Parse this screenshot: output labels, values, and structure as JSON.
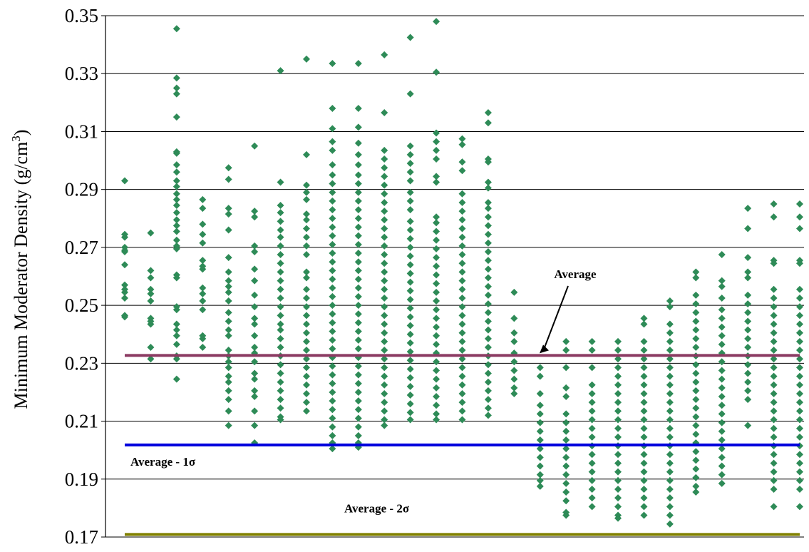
{
  "chart_data": {
    "type": "scatter",
    "ylabel": "Minimum Moderator Density (g/cm",
    "ylabel_sup": "3",
    "ylabel_close": ")",
    "xlabel": "",
    "ylim": [
      0.17,
      0.35
    ],
    "yticks": [
      "0.17",
      "0.19",
      "0.21",
      "0.23",
      "0.25",
      "0.27",
      "0.29",
      "0.31",
      "0.33",
      "0.35"
    ],
    "grid": true,
    "marker_color": "#2e8b57",
    "reference_lines": [
      {
        "label": "Average",
        "value": 0.2327,
        "color": "#8b3a62",
        "label_position": "above-center-with-arrow"
      },
      {
        "label": "Average - 1σ",
        "value": 0.2018,
        "color": "#0000dd",
        "label_position": "below-left"
      },
      {
        "label": "Average - 2σ",
        "value": 0.1709,
        "color": "#808000",
        "label_position": "above-left"
      }
    ],
    "series": [
      {
        "x": 1,
        "y": [
          0.293,
          0.2745,
          0.2735,
          0.27,
          0.269,
          0.2685,
          0.264,
          0.257,
          0.2555,
          0.2545,
          0.2525,
          0.2465,
          0.246
        ]
      },
      {
        "x": 2,
        "y": [
          0.275,
          0.262,
          0.2595,
          0.2555,
          0.254,
          0.2515,
          0.2455,
          0.2445,
          0.2435,
          0.2355,
          0.2315
        ]
      },
      {
        "x": 3,
        "y": [
          0.3455,
          0.3285,
          0.325,
          0.323,
          0.315,
          0.303,
          0.3025,
          0.2985,
          0.296,
          0.293,
          0.291,
          0.2885,
          0.2865,
          0.2845,
          0.282,
          0.2795,
          0.2775,
          0.2755,
          0.2725,
          0.2705,
          0.2695,
          0.2605,
          0.2595,
          0.2495,
          0.2485,
          0.2435,
          0.2415,
          0.2395,
          0.2365,
          0.2325,
          0.2315,
          0.2245
        ]
      },
      {
        "x": 4,
        "y": [
          0.2865,
          0.2835,
          0.278,
          0.2745,
          0.2715,
          0.2655,
          0.2635,
          0.2625,
          0.256,
          0.254,
          0.2515,
          0.2485,
          0.2395,
          0.2385,
          0.2355
        ]
      },
      {
        "x": 5,
        "y": [
          0.2975,
          0.2935,
          0.2835,
          0.2815,
          0.276,
          0.2665,
          0.2615,
          0.2585,
          0.2565,
          0.2545,
          0.2515,
          0.2475,
          0.2445,
          0.2415,
          0.2395,
          0.2345,
          0.2325,
          0.2305,
          0.2285,
          0.2255,
          0.2235,
          0.2205,
          0.2175,
          0.2135,
          0.2085
        ]
      },
      {
        "x": 6,
        "y": [
          0.305,
          0.2825,
          0.2805,
          0.2705,
          0.2685,
          0.2625,
          0.2585,
          0.2535,
          0.2495,
          0.2455,
          0.2435,
          0.2395,
          0.2355,
          0.2335,
          0.2305,
          0.2265,
          0.2245,
          0.2205,
          0.2185,
          0.2135,
          0.2085,
          0.2025
        ]
      },
      {
        "x": 7,
        "y": [
          0.331,
          0.2925,
          0.2845,
          0.282,
          0.279,
          0.276,
          0.2735,
          0.2705,
          0.2675,
          0.2645,
          0.2615,
          0.2585,
          0.2555,
          0.2525,
          0.2495,
          0.2465,
          0.2435,
          0.2415,
          0.2385,
          0.2355,
          0.2325,
          0.2295,
          0.2265,
          0.2235,
          0.2205,
          0.2175,
          0.2145,
          0.2115,
          0.2105
        ]
      },
      {
        "x": 8,
        "y": [
          0.335,
          0.302,
          0.2915,
          0.289,
          0.2865,
          0.2815,
          0.2795,
          0.2765,
          0.2735,
          0.2705,
          0.2675,
          0.2615,
          0.2595,
          0.2555,
          0.2525,
          0.2495,
          0.2465,
          0.2435,
          0.2405,
          0.2375,
          0.2345,
          0.2315,
          0.2285,
          0.2255,
          0.2225,
          0.2195,
          0.2165,
          0.2135
        ]
      },
      {
        "x": 9,
        "y": [
          0.3335,
          0.318,
          0.311,
          0.3065,
          0.3035,
          0.2985,
          0.295,
          0.292,
          0.289,
          0.286,
          0.283,
          0.28,
          0.277,
          0.274,
          0.271,
          0.268,
          0.265,
          0.262,
          0.259,
          0.256,
          0.253,
          0.25,
          0.247,
          0.244,
          0.241,
          0.238,
          0.235,
          0.232,
          0.229,
          0.226,
          0.223,
          0.22,
          0.217,
          0.214,
          0.211,
          0.208,
          0.205,
          0.2025,
          0.2005
        ]
      },
      {
        "x": 10,
        "y": [
          0.3335,
          0.318,
          0.3115,
          0.306,
          0.302,
          0.2985,
          0.295,
          0.292,
          0.289,
          0.286,
          0.283,
          0.28,
          0.277,
          0.274,
          0.271,
          0.268,
          0.265,
          0.262,
          0.259,
          0.256,
          0.253,
          0.25,
          0.247,
          0.244,
          0.241,
          0.238,
          0.235,
          0.232,
          0.229,
          0.226,
          0.223,
          0.22,
          0.217,
          0.214,
          0.211,
          0.208,
          0.205,
          0.2025,
          0.201
        ]
      },
      {
        "x": 11,
        "y": [
          0.3365,
          0.3165,
          0.3035,
          0.3005,
          0.2975,
          0.2945,
          0.2915,
          0.2885,
          0.2855,
          0.2825,
          0.2795,
          0.2765,
          0.2735,
          0.2705,
          0.2675,
          0.2645,
          0.2615,
          0.2585,
          0.2555,
          0.2525,
          0.2495,
          0.2465,
          0.2435,
          0.2405,
          0.2375,
          0.2345,
          0.2315,
          0.2285,
          0.2255,
          0.2225,
          0.2195,
          0.2165,
          0.2135,
          0.2105,
          0.2085
        ]
      },
      {
        "x": 12,
        "y": [
          0.3425,
          0.323,
          0.305,
          0.302,
          0.299,
          0.296,
          0.293,
          0.289,
          0.286,
          0.283,
          0.279,
          0.276,
          0.273,
          0.27,
          0.267,
          0.264,
          0.261,
          0.258,
          0.255,
          0.252,
          0.249,
          0.246,
          0.243,
          0.24,
          0.237,
          0.234,
          0.231,
          0.228,
          0.225,
          0.222,
          0.219,
          0.216,
          0.213,
          0.2105
        ]
      },
      {
        "x": 13,
        "y": [
          0.348,
          0.3305,
          0.3095,
          0.3065,
          0.3035,
          0.3005,
          0.2945,
          0.2925,
          0.2805,
          0.2785,
          0.2755,
          0.2725,
          0.2695,
          0.2665,
          0.2635,
          0.2605,
          0.2575,
          0.2545,
          0.2515,
          0.2485,
          0.2455,
          0.2425,
          0.2395,
          0.2365,
          0.2335,
          0.2305,
          0.2275,
          0.2245,
          0.2215,
          0.2185,
          0.2155,
          0.2125,
          0.2105
        ]
      },
      {
        "x": 14,
        "y": [
          0.3075,
          0.3055,
          0.2995,
          0.2965,
          0.2885,
          0.2855,
          0.2825,
          0.2795,
          0.2765,
          0.2735,
          0.2705,
          0.2675,
          0.2645,
          0.2615,
          0.2585,
          0.2555,
          0.2525,
          0.2495,
          0.2465,
          0.2435,
          0.2405,
          0.2375,
          0.2345,
          0.2315,
          0.2285,
          0.2255,
          0.2225,
          0.2195,
          0.2165,
          0.2135,
          0.2105
        ]
      },
      {
        "x": 15,
        "y": [
          0.3165,
          0.313,
          0.3005,
          0.2995,
          0.2925,
          0.2905,
          0.2855,
          0.2835,
          0.2805,
          0.2775,
          0.2745,
          0.2715,
          0.2685,
          0.2655,
          0.2625,
          0.2595,
          0.2565,
          0.2535,
          0.2505,
          0.2475,
          0.2445,
          0.2415,
          0.2385,
          0.2355,
          0.2325,
          0.2295,
          0.2265,
          0.2235,
          0.2205,
          0.2175,
          0.2145,
          0.212
        ]
      },
      {
        "x": 16,
        "y": [
          0.2545,
          0.2455,
          0.2405,
          0.2375,
          0.2335,
          0.2305,
          0.2275,
          0.2245,
          0.2215,
          0.2195
        ]
      },
      {
        "x": 17,
        "y": [
          0.2285,
          0.2255,
          0.2195,
          0.2155,
          0.2125,
          0.2095,
          0.2065,
          0.2035,
          0.2005,
          0.1975,
          0.1945,
          0.1915,
          0.1895,
          0.1875
        ]
      },
      {
        "x": 18,
        "y": [
          0.2375,
          0.2345,
          0.2285,
          0.2215,
          0.2185,
          0.2125,
          0.2095,
          0.2065,
          0.2035,
          0.2005,
          0.1975,
          0.1945,
          0.1915,
          0.1885,
          0.1855,
          0.1825,
          0.1785,
          0.1775
        ]
      },
      {
        "x": 19,
        "y": [
          0.2375,
          0.2345,
          0.2285,
          0.2225,
          0.2195,
          0.2165,
          0.2135,
          0.2105,
          0.2075,
          0.2045,
          0.2015,
          0.1985,
          0.1955,
          0.1925,
          0.1895,
          0.1865,
          0.1835,
          0.1805
        ]
      },
      {
        "x": 20,
        "y": [
          0.2375,
          0.2345,
          0.2315,
          0.2285,
          0.2255,
          0.2225,
          0.2195,
          0.2165,
          0.2135,
          0.2105,
          0.2075,
          0.2045,
          0.2015,
          0.1985,
          0.1955,
          0.1925,
          0.1895,
          0.1865,
          0.1835,
          0.1805,
          0.1775,
          0.1765
        ]
      },
      {
        "x": 21,
        "y": [
          0.2455,
          0.2435,
          0.2375,
          0.2345,
          0.2315,
          0.2285,
          0.2255,
          0.2225,
          0.2195,
          0.2165,
          0.2135,
          0.2105,
          0.2075,
          0.2045,
          0.2015,
          0.1985,
          0.1955,
          0.1925,
          0.1895,
          0.1865,
          0.1835,
          0.1805,
          0.1775
        ]
      },
      {
        "x": 22,
        "y": [
          0.2515,
          0.2495,
          0.2435,
          0.2405,
          0.2375,
          0.2345,
          0.2315,
          0.2285,
          0.2255,
          0.2225,
          0.2195,
          0.2165,
          0.2135,
          0.2105,
          0.2075,
          0.2045,
          0.2015,
          0.1985,
          0.1955,
          0.1925,
          0.1895,
          0.1865,
          0.1835,
          0.1805,
          0.1775,
          0.1745
        ]
      },
      {
        "x": 23,
        "y": [
          0.2615,
          0.2595,
          0.2535,
          0.2505,
          0.2475,
          0.2445,
          0.2415,
          0.2385,
          0.2355,
          0.2325,
          0.2295,
          0.2265,
          0.2235,
          0.2205,
          0.2175,
          0.2145,
          0.2115,
          0.2085,
          0.2055,
          0.2025,
          0.1995,
          0.1965,
          0.1935,
          0.1905,
          0.1875,
          0.1855
        ]
      },
      {
        "x": 24,
        "y": [
          0.2675,
          0.2585,
          0.2565,
          0.2525,
          0.2485,
          0.2455,
          0.2425,
          0.2395,
          0.2365,
          0.2335,
          0.2305,
          0.2275,
          0.2245,
          0.2215,
          0.2185,
          0.2155,
          0.2125,
          0.2095,
          0.2065,
          0.2035,
          0.2005,
          0.1975,
          0.1945,
          0.1915,
          0.1885
        ]
      },
      {
        "x": 25,
        "y": [
          0.2835,
          0.2765,
          0.2665,
          0.2615,
          0.2595,
          0.2535,
          0.2505,
          0.2475,
          0.2445,
          0.2415,
          0.2385,
          0.2355,
          0.2325,
          0.2295,
          0.2265,
          0.2235,
          0.2205,
          0.2175,
          0.2085
        ]
      },
      {
        "x": 26,
        "y": [
          0.285,
          0.2805,
          0.2655,
          0.2645,
          0.2555,
          0.2525,
          0.2495,
          0.2465,
          0.2435,
          0.2405,
          0.2375,
          0.2345,
          0.2315,
          0.2285,
          0.2255,
          0.2225,
          0.2195,
          0.2165,
          0.2135,
          0.2105,
          0.2075,
          0.2045,
          0.2015,
          0.1985,
          0.1955,
          0.1925,
          0.1895,
          0.1865,
          0.1805
        ]
      },
      {
        "x": 27,
        "y": [
          0.285,
          0.2805,
          0.2765,
          0.2655,
          0.2645,
          0.2555,
          0.2525,
          0.2495,
          0.2465,
          0.2435,
          0.2405,
          0.2375,
          0.2345,
          0.2315,
          0.2285,
          0.2255,
          0.2225,
          0.2195,
          0.2165,
          0.2135,
          0.2105,
          0.2075,
          0.2045,
          0.2015,
          0.1985,
          0.1955,
          0.1925,
          0.1895,
          0.1865,
          0.1805
        ]
      }
    ]
  }
}
